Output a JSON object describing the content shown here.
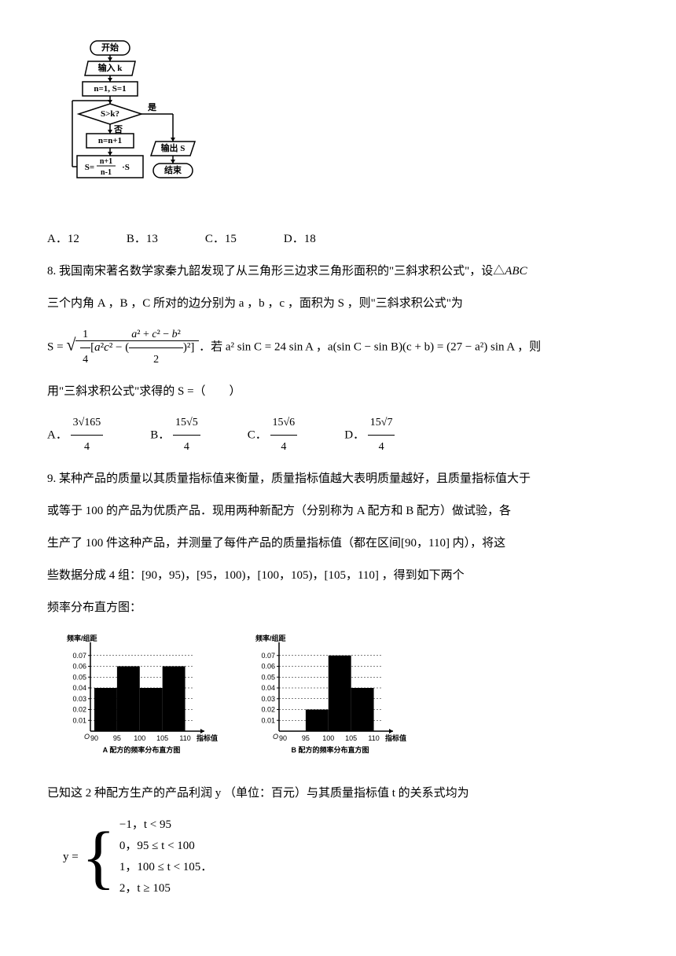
{
  "flowchart": {
    "start": "开始",
    "input": "输入 k",
    "init": "n=1, S=1",
    "cond": "S>k?",
    "yes": "是",
    "no": "否",
    "inc": "n=n+1",
    "update_left": "S=",
    "update_num": "n+1",
    "update_den": "n-1",
    "update_right": "·S",
    "output": "输出 S",
    "end": "结束"
  },
  "q7_options": {
    "a": "A．12",
    "b": "B．13",
    "c": "C．15",
    "d": "D．18"
  },
  "q8": {
    "text1": "8. 我国南宋著名数学家秦九韶发现了从三角形三边求三角形面积的\"三斜求积公式\"，设△",
    "text1b": "ABC",
    "text2": "三个内角 A ，B ，C 所对的边分别为 a ，b ，c ，面积为 S ，则\"三斜求积公式\"为",
    "formula1_prefix": "S = ",
    "formula1_cond": "．若 a² sin C = 24 sin A ，a(sin C − sin B)(c + b) = (27 − a²) sin A ，则",
    "text3": "用\"三斜求积公式\"求得的 S =（　　）",
    "opt_a_label": "A．",
    "opt_a_num": "3√165",
    "opt_a_den": "4",
    "opt_b_label": "B．",
    "opt_b_num": "15√5",
    "opt_b_den": "4",
    "opt_c_label": "C．",
    "opt_c_num": "15√6",
    "opt_c_den": "4",
    "opt_d_label": "D．",
    "opt_d_num": "15√7",
    "opt_d_den": "4"
  },
  "q9": {
    "text1": "9. 某种产品的质量以其质量指标值来衡量，质量指标值越大表明质量越好，且质量指标值大于",
    "text2": "或等于 100 的产品为优质产品．现用两种新配方（分别称为 A 配方和 B 配方）做试验，各",
    "text3": "生产了 100 件这种产品，并测量了每件产品的质量指标值（都在区间[90，110] 内），将这",
    "text4": "些数据分成 4 组：[90，95)，[95，100)，[100，105)，[105，110] ，得到如下两个",
    "text5": "频率分布直方图：",
    "text6": "已知这 2 种配方生产的产品利润 y （单位：百元）与其质量指标值 t 的关系式均为",
    "piecewise_var": "y =",
    "case1": "−1，t < 95",
    "case2": "0，95 ≤ t < 100",
    "case3": "1，100 ≤ t < 105",
    "case4": "2，t ≥ 105",
    "period": "．"
  },
  "histogram_a": {
    "ylabel": "频率/组距",
    "xlabel": "指标值",
    "caption": "A 配方的频率分布直方图",
    "yticks": [
      "0.01",
      "0.02",
      "0.03",
      "0.04",
      "0.05",
      "0.06",
      "0.07"
    ],
    "xticks": [
      "90",
      "95",
      "100",
      "105",
      "110"
    ],
    "bars": [
      {
        "x": 90,
        "h": 0.04
      },
      {
        "x": 95,
        "h": 0.06
      },
      {
        "x": 100,
        "h": 0.04
      },
      {
        "x": 105,
        "h": 0.06
      }
    ],
    "bar_color": "#000000",
    "axis_color": "#000000"
  },
  "histogram_b": {
    "ylabel": "频率/组距",
    "xlabel": "指标值",
    "caption": "B 配方的频率分布直方图",
    "yticks": [
      "0.01",
      "0.02",
      "0.03",
      "0.04",
      "0.05",
      "0.06",
      "0.07"
    ],
    "xticks": [
      "90",
      "95",
      "100",
      "105",
      "110"
    ],
    "bars": [
      {
        "x": 90,
        "h": 0.0
      },
      {
        "x": 95,
        "h": 0.02
      },
      {
        "x": 100,
        "h": 0.07
      },
      {
        "x": 105,
        "h": 0.04
      }
    ],
    "bar_color": "#000000",
    "axis_color": "#000000"
  }
}
